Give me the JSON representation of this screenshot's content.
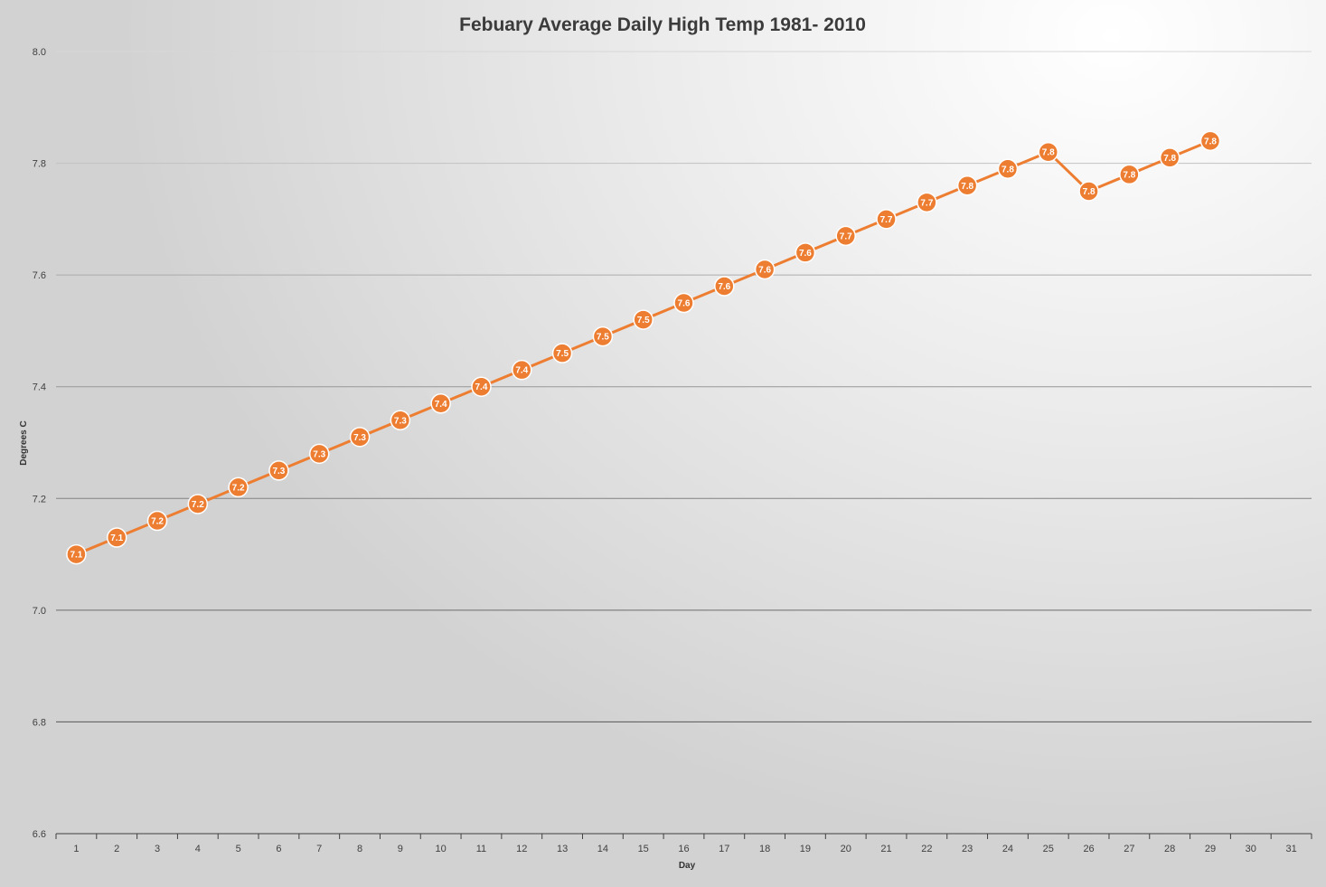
{
  "chart_data": {
    "type": "line",
    "title": "Febuary Average Daily High Temp 1981- 2010",
    "xlabel": "Day",
    "ylabel": "Degrees C",
    "categories": [
      "1",
      "2",
      "3",
      "4",
      "5",
      "6",
      "7",
      "8",
      "9",
      "10",
      "11",
      "12",
      "13",
      "14",
      "15",
      "16",
      "17",
      "18",
      "19",
      "20",
      "21",
      "22",
      "23",
      "24",
      "25",
      "26",
      "27",
      "28",
      "29",
      "30",
      "31"
    ],
    "ylim": [
      6.6,
      8.0
    ],
    "yticks": [
      "6.6",
      "6.8",
      "7.0",
      "7.2",
      "7.4",
      "7.6",
      "7.8",
      "8.0"
    ],
    "grid": true,
    "series": [
      {
        "color": "#ed7d31",
        "values": [
          7.1,
          7.13,
          7.16,
          7.19,
          7.22,
          7.25,
          7.28,
          7.31,
          7.34,
          7.37,
          7.4,
          7.43,
          7.46,
          7.49,
          7.52,
          7.55,
          7.58,
          7.61,
          7.64,
          7.67,
          7.7,
          7.73,
          7.76,
          7.79,
          7.82,
          7.75,
          7.78,
          7.81,
          7.84,
          null,
          null
        ],
        "labels": [
          "7.1",
          "7.1",
          "7.2",
          "7.2",
          "7.2",
          "7.3",
          "7.3",
          "7.3",
          "7.3",
          "7.4",
          "7.4",
          "7.4",
          "7.5",
          "7.5",
          "7.5",
          "7.6",
          "7.6",
          "7.6",
          "7.6",
          "7.7",
          "7.7",
          "7.7",
          "7.8",
          "7.8",
          "7.8",
          "7.8",
          "7.8",
          "7.8",
          "7.8",
          null,
          null
        ]
      }
    ]
  }
}
